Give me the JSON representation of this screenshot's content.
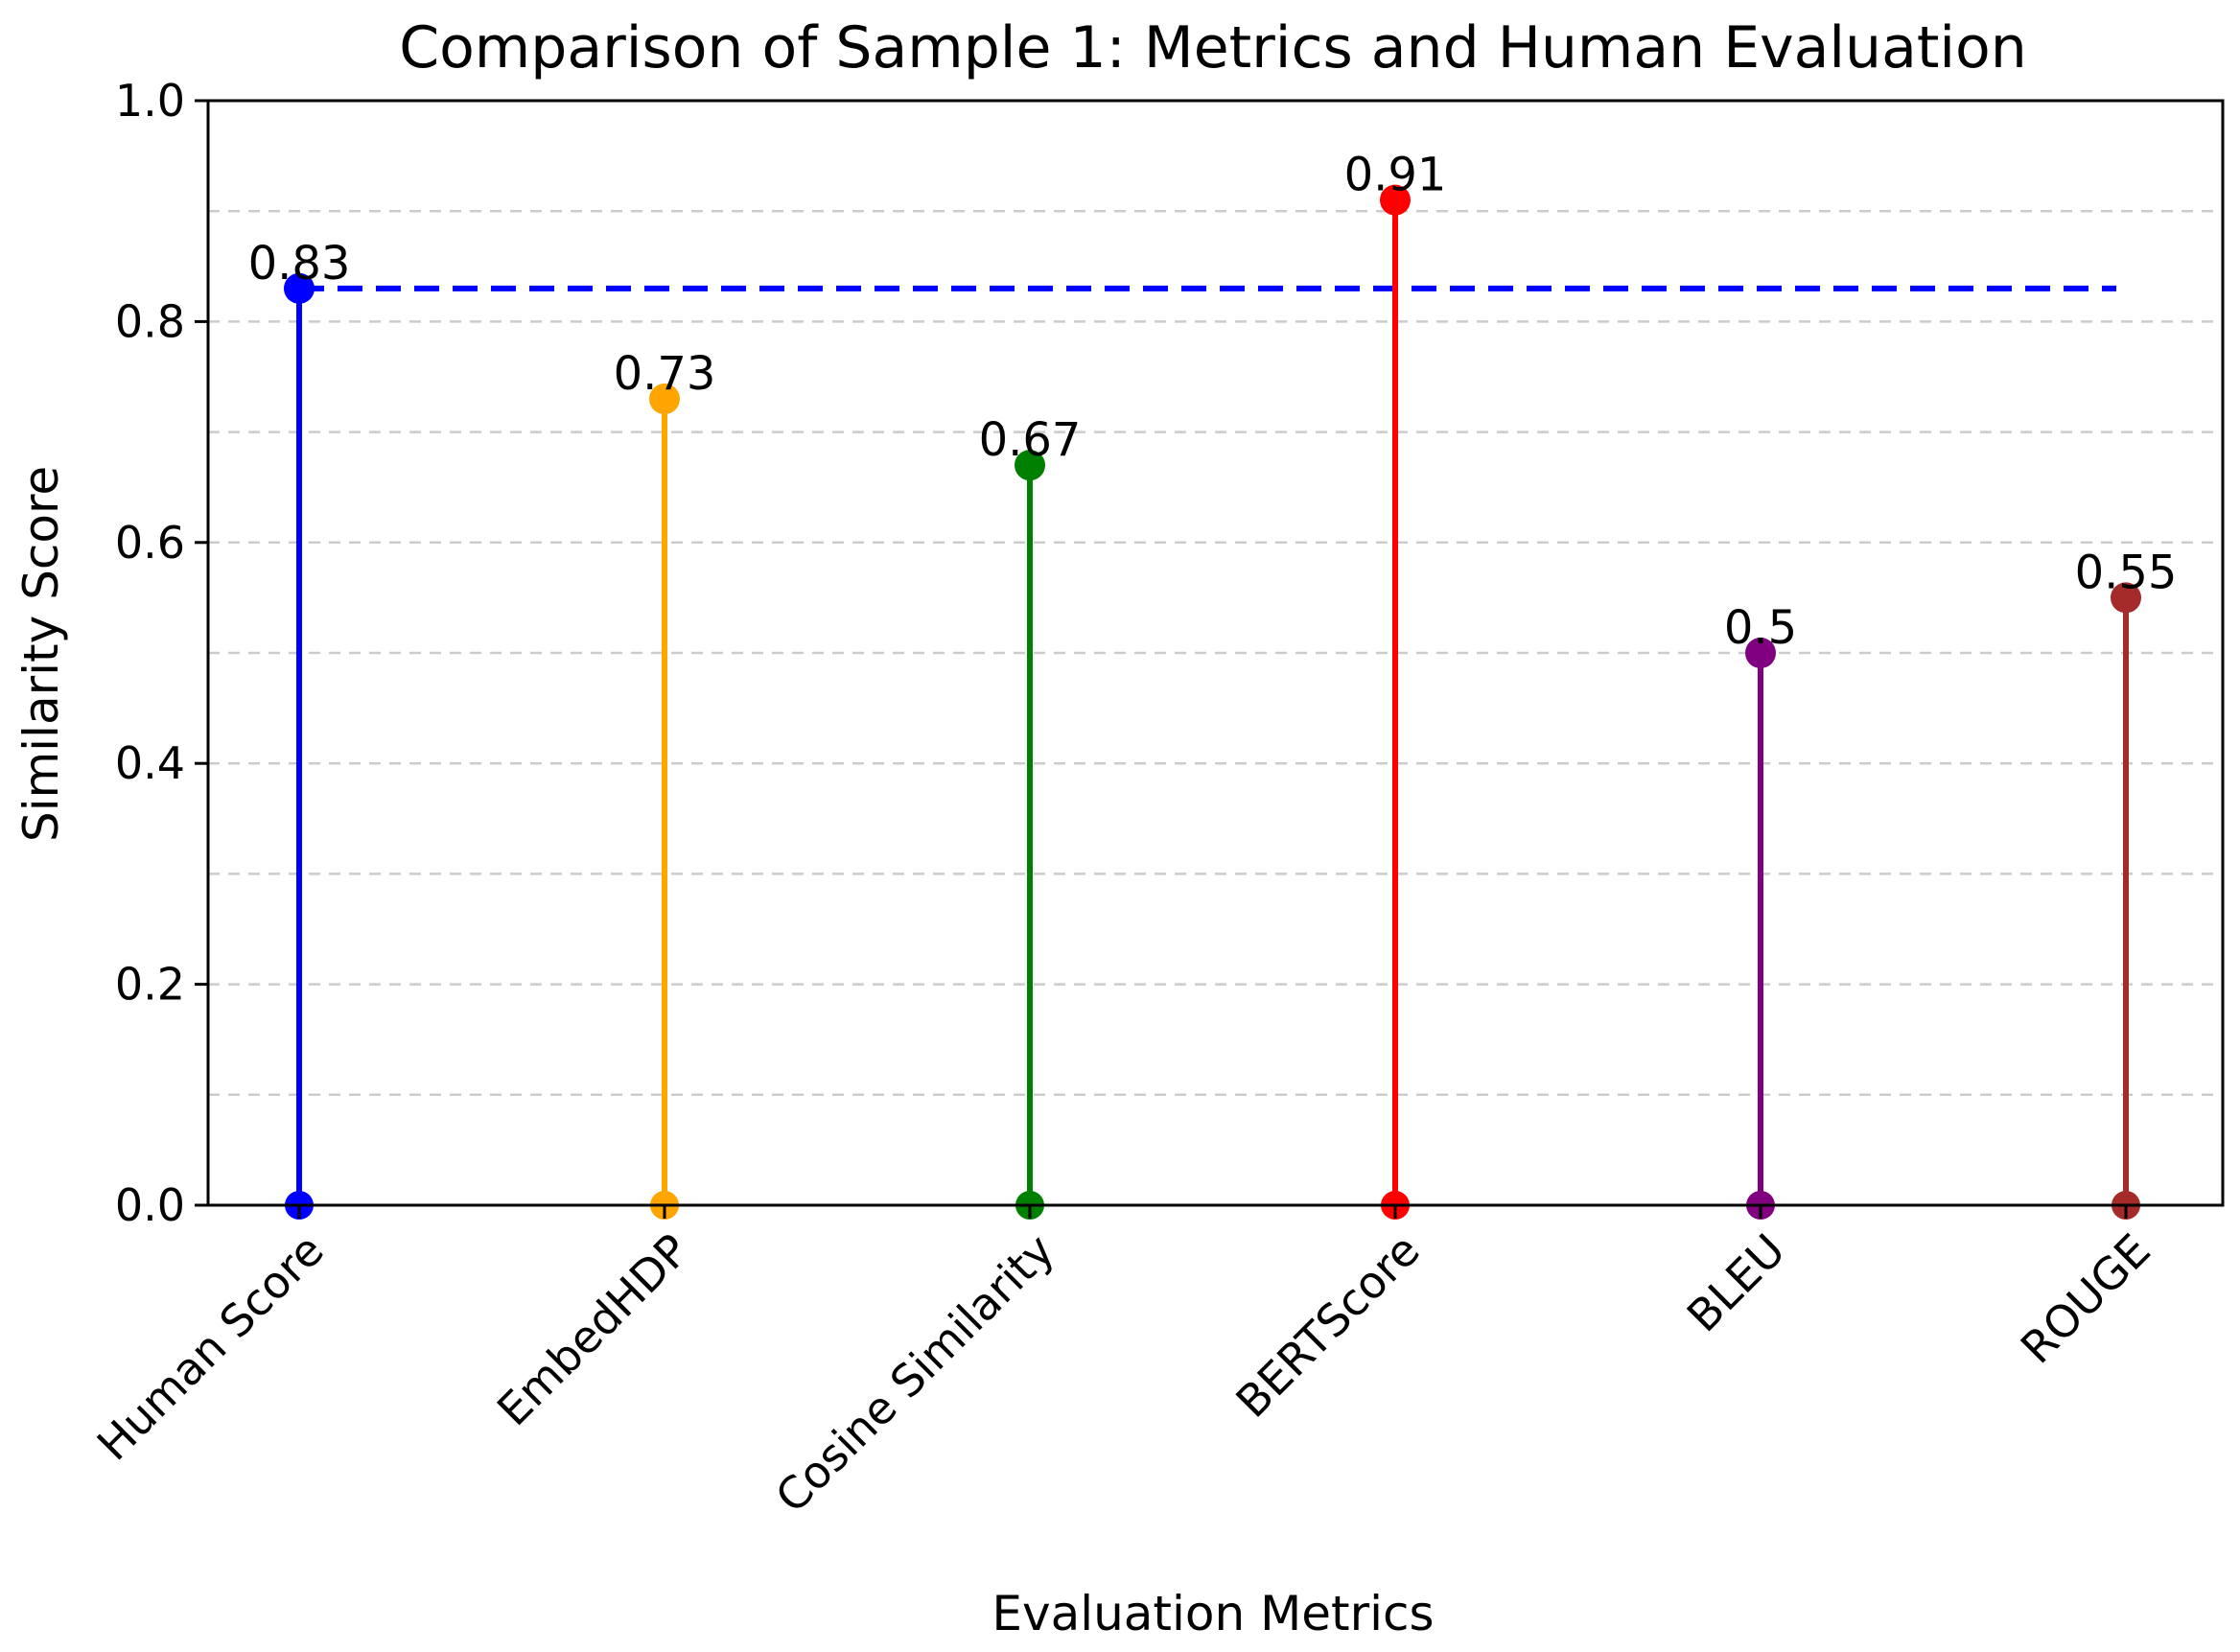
{
  "chart_data": {
    "type": "stem",
    "title": "Comparison of Sample 1: Metrics and Human Evaluation",
    "xlabel": "Evaluation Metrics",
    "ylabel": "Similarity Score",
    "ylim": [
      0,
      1.0
    ],
    "yticks": [
      "0.0",
      "0.2",
      "0.4",
      "0.6",
      "0.8",
      "1.0"
    ],
    "grid": "horizontal dashed",
    "categories": [
      "Human Score",
      "EmbedHDP",
      "Cosine Similarity",
      "BERTScore",
      "BLEU",
      "ROUGE"
    ],
    "values": [
      0.83,
      0.73,
      0.67,
      0.91,
      0.5,
      0.55
    ],
    "data_labels": [
      "0.83",
      "0.73",
      "0.67",
      "0.91",
      "0.5",
      "0.55"
    ],
    "colors": [
      "#0000ff",
      "#ffa500",
      "#008000",
      "#ff0000",
      "#800080",
      "#a52a2a"
    ],
    "reference_line": {
      "value": 0.83,
      "color": "#0000ff",
      "style": "dashed"
    }
  }
}
